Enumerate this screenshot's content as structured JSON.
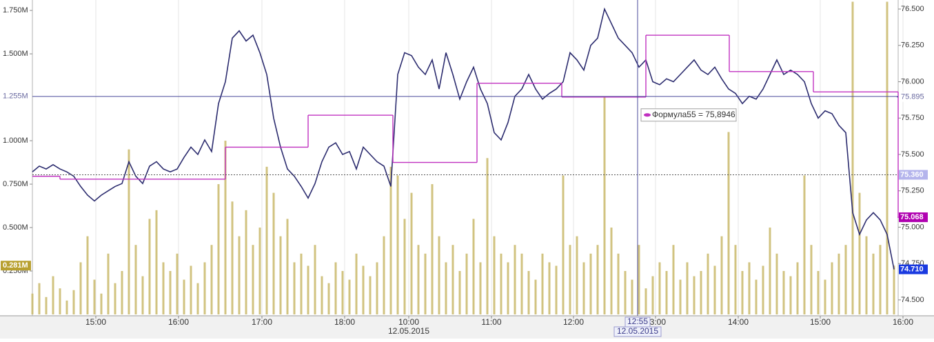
{
  "chart_data": {
    "type": "combo",
    "x": [
      0,
      1,
      2,
      3,
      4,
      5,
      6,
      7,
      8,
      9,
      10,
      11,
      12,
      13,
      14,
      15,
      16,
      17,
      18,
      19,
      20,
      21,
      22,
      23,
      24,
      25,
      26,
      27,
      28,
      29,
      30,
      31,
      32,
      33,
      34,
      35,
      36,
      37,
      38,
      39,
      40,
      41,
      42,
      43,
      44,
      45,
      46,
      47,
      48,
      49,
      50,
      51,
      52,
      53,
      54,
      55,
      56,
      57,
      58,
      59,
      60,
      61,
      62,
      63,
      64,
      65,
      66,
      67,
      68,
      69,
      70,
      71,
      72,
      73,
      74,
      75,
      76,
      77,
      78,
      79,
      80,
      81,
      82,
      83,
      84,
      85,
      86,
      87,
      88,
      89,
      90,
      91,
      92,
      93,
      94,
      95,
      96,
      97,
      98,
      99,
      100,
      101,
      102,
      103,
      104,
      105,
      106,
      107,
      108,
      109,
      110,
      111,
      112,
      113,
      114,
      115,
      116,
      117,
      118,
      119,
      120,
      121,
      122,
      123,
      124,
      125
    ],
    "xlim": [
      0,
      125.6
    ],
    "xticks": [
      {
        "value": 9.2,
        "label": "15:00"
      },
      {
        "value": 21.2,
        "label": "16:00"
      },
      {
        "value": 33.3,
        "label": "17:00"
      },
      {
        "value": 45.3,
        "label": "18:00"
      },
      {
        "value": 54.6,
        "label": "10:00"
      },
      {
        "value": 66.6,
        "label": "11:00"
      },
      {
        "value": 78.5,
        "label": "12:00"
      },
      {
        "value": 90.4,
        "label": "13:00"
      },
      {
        "value": 102.4,
        "label": "14:00"
      },
      {
        "value": 114.3,
        "label": "15:00"
      },
      {
        "value": 126.3,
        "label": "16:00"
      }
    ],
    "date_label": {
      "value": 54.6,
      "label": "12.05.2015"
    },
    "ylim": [
      0,
      1.81
    ],
    "yticks": [
      {
        "value": 0.25,
        "label": "0.250M"
      },
      {
        "value": 0.5,
        "label": "0.500M"
      },
      {
        "value": 0.75,
        "label": "0.750M"
      },
      {
        "value": 1.0,
        "label": "1.000M"
      },
      {
        "value": 1.5,
        "label": "1.500M"
      },
      {
        "value": 1.75,
        "label": "1.750M"
      }
    ],
    "y2lim": [
      74.4,
      76.562
    ],
    "y2ticks": [
      {
        "value": 74.5,
        "label": "74.500"
      },
      {
        "value": 74.75,
        "label": "74.750"
      },
      {
        "value": 75.0,
        "label": "75.000"
      },
      {
        "value": 75.25,
        "label": "75.250"
      },
      {
        "value": 75.5,
        "label": "75.500"
      },
      {
        "value": 75.75,
        "label": "75.750"
      },
      {
        "value": 76.0,
        "label": "76.000"
      },
      {
        "value": 76.25,
        "label": "76.250"
      },
      {
        "value": 76.5,
        "label": "76.500"
      }
    ],
    "grid": true,
    "series": [
      {
        "type": "bar",
        "color": "#c9b96a",
        "values": [
          0.12,
          0.18,
          0.1,
          0.22,
          0.15,
          0.08,
          0.14,
          0.3,
          0.45,
          0.2,
          0.12,
          0.35,
          0.18,
          0.25,
          0.95,
          0.4,
          0.22,
          0.55,
          0.6,
          0.3,
          0.25,
          0.35,
          0.2,
          0.28,
          0.18,
          0.3,
          0.4,
          0.75,
          1.0,
          0.65,
          0.45,
          0.6,
          0.4,
          0.5,
          0.85,
          0.7,
          0.45,
          0.55,
          0.3,
          0.35,
          0.28,
          0.4,
          0.22,
          0.18,
          0.3,
          0.25,
          0.2,
          0.35,
          0.28,
          0.22,
          0.3,
          0.45,
          0.85,
          0.8,
          0.55,
          0.7,
          0.4,
          0.35,
          0.75,
          0.45,
          0.3,
          0.4,
          0.25,
          0.35,
          0.55,
          0.3,
          0.9,
          0.45,
          0.35,
          0.3,
          0.4,
          0.35,
          0.25,
          0.2,
          0.35,
          0.3,
          0.28,
          0.8,
          0.4,
          0.45,
          0.3,
          0.35,
          0.4,
          1.25,
          0.5,
          0.35,
          0.25,
          0.2,
          0.4,
          0.15,
          0.22,
          0.3,
          0.25,
          0.4,
          0.2,
          0.3,
          0.22,
          0.25,
          0.35,
          0.28,
          0.45,
          1.05,
          0.4,
          0.25,
          0.3,
          0.2,
          0.28,
          0.5,
          0.35,
          0.25,
          0.22,
          0.3,
          0.8,
          0.4,
          0.25,
          0.2,
          0.3,
          0.35,
          0.4,
          1.8,
          0.7,
          0.45,
          0.35,
          0.4,
          1.8,
          0.281
        ]
      },
      {
        "type": "line",
        "axis": "y2",
        "color": "#2b2b6e",
        "values": [
          75.38,
          75.42,
          75.4,
          75.43,
          75.4,
          75.38,
          75.35,
          75.28,
          75.22,
          75.18,
          75.22,
          75.25,
          75.28,
          75.3,
          75.45,
          75.35,
          75.3,
          75.42,
          75.45,
          75.4,
          75.38,
          75.4,
          75.48,
          75.55,
          75.5,
          75.6,
          75.52,
          75.85,
          76.0,
          76.3,
          76.35,
          76.28,
          76.32,
          76.2,
          76.05,
          75.75,
          75.55,
          75.4,
          75.35,
          75.28,
          75.2,
          75.3,
          75.45,
          75.55,
          75.58,
          75.5,
          75.52,
          75.4,
          75.55,
          75.5,
          75.45,
          75.42,
          75.28,
          76.05,
          76.2,
          76.18,
          76.1,
          76.05,
          76.15,
          75.95,
          76.2,
          76.05,
          75.88,
          76.0,
          76.1,
          75.95,
          75.85,
          75.65,
          75.6,
          75.72,
          75.9,
          75.95,
          76.05,
          75.95,
          75.88,
          75.92,
          75.95,
          76.0,
          76.2,
          76.15,
          76.08,
          76.25,
          76.3,
          76.5,
          76.4,
          76.3,
          76.25,
          76.2,
          76.1,
          76.15,
          76.0,
          75.98,
          76.02,
          76.0,
          76.05,
          76.1,
          76.15,
          76.08,
          76.05,
          76.1,
          76.02,
          75.95,
          75.92,
          75.85,
          75.9,
          75.88,
          75.95,
          76.05,
          76.15,
          76.05,
          76.08,
          76.05,
          76.0,
          75.85,
          75.75,
          75.8,
          75.78,
          75.7,
          75.65,
          75.1,
          74.95,
          75.05,
          75.1,
          75.05,
          74.95,
          74.71
        ]
      },
      {
        "type": "step",
        "axis": "y2",
        "color": "#c030c0",
        "x": [
          0,
          4,
          28,
          40,
          52.3,
          64.5,
          76.8,
          89,
          101.1,
          113.3,
          125.6
        ],
        "values": [
          75.35,
          75.33,
          75.55,
          75.77,
          75.445,
          75.99,
          75.8946,
          76.32,
          76.07,
          75.93,
          75.068
        ]
      }
    ],
    "levels": [
      {
        "value": 75.36,
        "label": "75.360",
        "color": "#b4b4ec",
        "dashed": true
      },
      {
        "value": 75.068,
        "label": "75.068",
        "color": "#b000b0"
      },
      {
        "value": 74.71,
        "label": "74.710",
        "color": "#1a3ae0"
      }
    ],
    "volume_marker": {
      "value": 0.281,
      "label": "0.281M",
      "color": "#b8a030"
    },
    "crosshair": {
      "x": {
        "value": 87.8,
        "label": "12:55"
      },
      "date": "12.05.2015",
      "y": {
        "value": 1.255,
        "label": "1.255M"
      },
      "y2": {
        "value": 75.895,
        "label": "75.895"
      },
      "color": "#4a4a9a"
    },
    "tooltip": {
      "value": 75.8946,
      "label": "Формула55 = 75,8946"
    }
  }
}
